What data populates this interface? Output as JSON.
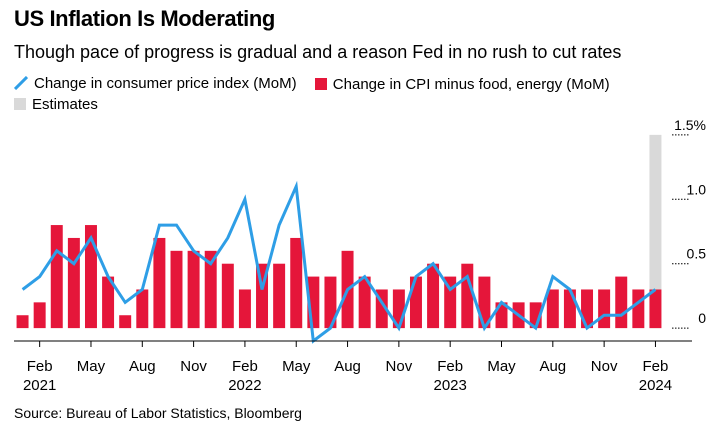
{
  "title": "US Inflation Is Moderating",
  "subtitle": "Though pace of progress is gradual and a reason Fed in no rush to cut rates",
  "source": "Source: Bureau of Labor Statistics, Bloomberg",
  "colors": {
    "line": "#2e9ee6",
    "bar": "#e5163a",
    "estimate": "#d9d9d9",
    "grid": "#000000"
  },
  "legend": [
    {
      "name": "Change in consumer price index (MoM)",
      "kind": "line"
    },
    {
      "name": "Change in CPI minus food, energy (MoM)",
      "kind": "bar"
    },
    {
      "name": "Estimates",
      "kind": "bar-estimate"
    }
  ],
  "chart_data": {
    "type": "bar+line",
    "x_tick_labels": [
      {
        "month": "2021-02",
        "label": "Feb",
        "year": "2021"
      },
      {
        "month": "2021-05",
        "label": "May",
        "year": ""
      },
      {
        "month": "2021-08",
        "label": "Aug",
        "year": ""
      },
      {
        "month": "2021-11",
        "label": "Nov",
        "year": ""
      },
      {
        "month": "2022-02",
        "label": "Feb",
        "year": "2022"
      },
      {
        "month": "2022-05",
        "label": "May",
        "year": ""
      },
      {
        "month": "2022-08",
        "label": "Aug",
        "year": ""
      },
      {
        "month": "2022-11",
        "label": "Nov",
        "year": ""
      },
      {
        "month": "2023-02",
        "label": "Feb",
        "year": "2023"
      },
      {
        "month": "2023-05",
        "label": "May",
        "year": ""
      },
      {
        "month": "2023-08",
        "label": "Aug",
        "year": ""
      },
      {
        "month": "2023-11",
        "label": "Nov",
        "year": ""
      },
      {
        "month": "2024-02",
        "label": "Feb",
        "year": "2024"
      }
    ],
    "y_ticks": [
      {
        "v": 1.5,
        "label": "1.5%"
      },
      {
        "v": 1.0,
        "label": "1.0"
      },
      {
        "v": 0.5,
        "label": "0.5"
      },
      {
        "v": 0,
        "label": "0"
      }
    ],
    "ylim": [
      -0.1,
      1.6
    ],
    "axis_side": "right",
    "months": [
      "2021-01",
      "2021-02",
      "2021-03",
      "2021-04",
      "2021-05",
      "2021-06",
      "2021-07",
      "2021-08",
      "2021-09",
      "2021-10",
      "2021-11",
      "2021-12",
      "2022-01",
      "2022-02",
      "2022-03",
      "2022-04",
      "2022-05",
      "2022-06",
      "2022-07",
      "2022-08",
      "2022-09",
      "2022-10",
      "2022-11",
      "2022-12",
      "2023-01",
      "2023-02",
      "2023-03",
      "2023-04",
      "2023-05",
      "2023-06",
      "2023-07",
      "2023-08",
      "2023-09",
      "2023-10",
      "2023-11",
      "2023-12",
      "2024-01",
      "2024-02"
    ],
    "series": [
      {
        "name": "Change in consumer price index (MoM)",
        "type": "line",
        "values": [
          0.3,
          0.4,
          0.6,
          0.5,
          0.7,
          0.4,
          0.2,
          0.3,
          0.8,
          0.8,
          0.6,
          0.5,
          0.7,
          1.0,
          0.3,
          0.8,
          1.1,
          -0.1,
          0.0,
          0.3,
          0.4,
          0.2,
          0.0,
          0.4,
          0.5,
          0.3,
          0.4,
          0.0,
          0.2,
          0.1,
          0.0,
          0.4,
          0.3,
          0.0,
          0.1,
          0.1,
          0.2,
          0.3
        ]
      },
      {
        "name": "Change in CPI minus food, energy (MoM)",
        "type": "bar",
        "values": [
          0.1,
          0.2,
          0.8,
          0.7,
          0.8,
          0.4,
          0.1,
          0.3,
          0.7,
          0.6,
          0.6,
          0.6,
          0.5,
          0.3,
          0.5,
          0.5,
          0.7,
          0.4,
          0.4,
          0.6,
          0.4,
          0.3,
          0.3,
          0.4,
          0.5,
          0.4,
          0.5,
          0.4,
          0.2,
          0.2,
          0.2,
          0.3,
          0.3,
          0.3,
          0.3,
          0.4,
          0.3,
          0.3
        ]
      },
      {
        "name": "Estimates",
        "type": "bar",
        "month": "2024-02",
        "values": [
          1.5
        ]
      }
    ]
  }
}
